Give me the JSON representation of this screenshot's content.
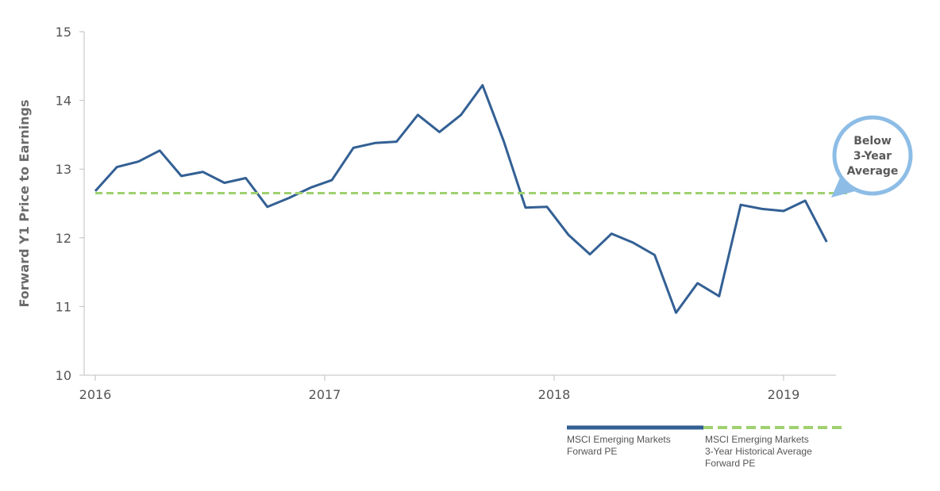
{
  "chart_data": {
    "type": "line",
    "title": "",
    "xlabel": "",
    "ylabel": "Forward Y1 Price to Earnings",
    "ylim": [
      10,
      15
    ],
    "yticks": [
      "10",
      "11",
      "12",
      "13",
      "14",
      "15"
    ],
    "xticks": [
      "2016",
      "2017",
      "2018",
      "2019"
    ],
    "xlim": [
      2016.0,
      2019.28
    ],
    "grid": false,
    "legend_position": "bottom-right",
    "series": [
      {
        "name": "MSCI Emerging Markets Forward PE",
        "color": "#336094",
        "style": "solid",
        "x": [
          2016.0,
          2016.094,
          2016.188,
          2016.281,
          2016.375,
          2016.469,
          2016.563,
          2016.656,
          2016.75,
          2016.844,
          2016.938,
          2017.031,
          2017.125,
          2017.219,
          2017.313,
          2017.406,
          2017.5,
          2017.594,
          2017.688,
          2017.781,
          2017.875,
          2017.969,
          2018.063,
          2018.156,
          2018.25,
          2018.344,
          2018.438,
          2018.531,
          2018.625,
          2018.719,
          2018.813,
          2018.906,
          2019.0,
          2019.094,
          2019.188
        ],
        "values": [
          12.68,
          13.03,
          13.11,
          13.27,
          12.9,
          12.96,
          12.8,
          12.87,
          12.45,
          12.58,
          12.73,
          12.84,
          13.31,
          13.38,
          13.4,
          13.79,
          13.54,
          13.79,
          14.22,
          13.4,
          12.44,
          12.45,
          12.04,
          11.76,
          12.06,
          11.93,
          11.75,
          10.91,
          11.34,
          11.15,
          12.48,
          12.42,
          12.39,
          12.54,
          11.94
        ]
      },
      {
        "name": "MSCI Emerging Markets 3-Year Historical Average Forward PE",
        "color": "#9fd16f",
        "style": "dashed",
        "x": [
          2016.0,
          2019.28
        ],
        "values": [
          12.65,
          12.65
        ]
      }
    ],
    "annotations": [
      "Below",
      "3-Year",
      "Average"
    ]
  },
  "legend": {
    "item1": [
      "MSCI Emerging Markets",
      "Forward PE"
    ],
    "item2": [
      "MSCI Emerging Markets",
      "3-Year Historical Average",
      "Forward PE"
    ]
  },
  "colors": {
    "callout_fill": "#ffffff",
    "callout_border": "#8dbde6",
    "axis": "#bfbfbf"
  }
}
